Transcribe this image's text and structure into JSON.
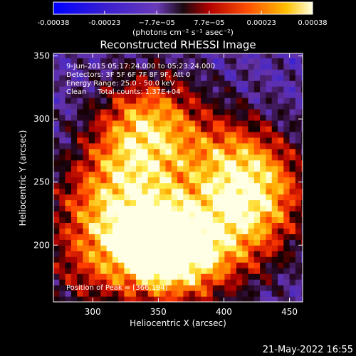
{
  "chart_data": {
    "type": "heatmap",
    "title": "Reconstructed RHESSI Image",
    "xlabel": "Heliocentric X (arcsec)",
    "ylabel": "Heliocentric Y (arcsec)",
    "xlim": [
      270,
      460
    ],
    "ylim": [
      155,
      352
    ],
    "xticks": [
      300,
      350,
      400,
      450
    ],
    "yticks": [
      200,
      250,
      300,
      350
    ],
    "colorbar": {
      "ticks": [
        "-0.00038",
        "-0.00023",
        "−7.7e−05",
        "7.7e−05",
        "0.00023",
        "0.00038"
      ],
      "values": [
        -0.00038,
        -0.00023,
        -7.7e-05,
        7.7e-05,
        0.00023,
        0.00038
      ],
      "unit_label": "(photons cm⁻² s⁻¹ asec⁻²)"
    },
    "annotations": [
      "9-Jun-2015 05:17:24.000 to 05:23:24.000",
      "Detectors: 3F 5F 6F 7F 8F 9F, Att 0",
      "Energy Range: 25.0 - 50.0 keV",
      "Clean     Total counts: 1.37E+04"
    ],
    "peak_label": "Position of Peak = [366,194]",
    "peak": [
      366,
      194
    ],
    "bright_sources": [
      {
        "x": 366,
        "y": 194,
        "amp": 1.0
      },
      {
        "x": 340,
        "y": 205,
        "amp": 0.75
      },
      {
        "x": 345,
        "y": 300,
        "amp": 0.7
      },
      {
        "x": 330,
        "y": 265,
        "amp": 0.6
      },
      {
        "x": 405,
        "y": 265,
        "amp": 0.65
      },
      {
        "x": 430,
        "y": 245,
        "amp": 0.55
      },
      {
        "x": 415,
        "y": 210,
        "amp": 0.5
      },
      {
        "x": 300,
        "y": 230,
        "amp": 0.45
      },
      {
        "x": 295,
        "y": 180,
        "amp": 0.35
      }
    ],
    "colormap_name": "rhessi-blue-red-yellow"
  },
  "footer": {
    "timestamp": "21-May-2022 16:55"
  }
}
